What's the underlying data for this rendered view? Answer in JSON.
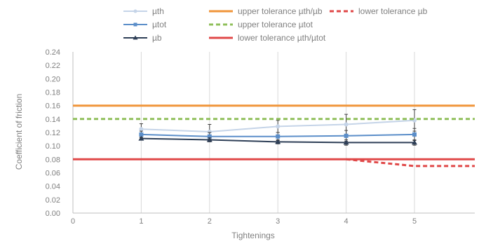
{
  "chart_data": {
    "type": "line",
    "title": "",
    "xlabel": "Tightenings",
    "ylabel": "Coefficient of friction",
    "xlim": [
      0,
      6
    ],
    "ylim": [
      0.0,
      0.24
    ],
    "x_ticks": [
      0,
      1,
      2,
      3,
      4,
      5
    ],
    "x_tick_labels": [
      "0",
      "1",
      "2",
      "3",
      "4",
      "5"
    ],
    "y_ticks": [
      0.0,
      0.02,
      0.04,
      0.06,
      0.08,
      0.1,
      0.12,
      0.14,
      0.16,
      0.18,
      0.2,
      0.22,
      0.24
    ],
    "y_tick_labels": [
      "0.00",
      "0.02",
      "0.04",
      "0.06",
      "0.08",
      "0.10",
      "0.12",
      "0.14",
      "0.16",
      "0.18",
      "0.20",
      "0.22",
      "0.24"
    ],
    "grid": "vertical",
    "legend_position": "top",
    "series": [
      {
        "name": "µth",
        "color": "#c5d4e8",
        "marker": "circle",
        "style": "solid",
        "x": [
          1,
          2,
          3,
          4,
          5
        ],
        "y": [
          0.125,
          0.121,
          0.129,
          0.132,
          0.138
        ],
        "error": [
          0.008,
          0.011,
          0.009,
          0.015,
          0.016
        ]
      },
      {
        "name": "µtot",
        "color": "#5b8ec9",
        "marker": "square",
        "style": "solid",
        "x": [
          1,
          2,
          3,
          4,
          5
        ],
        "y": [
          0.117,
          0.114,
          0.114,
          0.115,
          0.117
        ],
        "error": [
          0.005,
          0.006,
          0.006,
          0.008,
          0.009
        ]
      },
      {
        "name": "µb",
        "color": "#2e3f57",
        "marker": "triangle",
        "style": "solid",
        "x": [
          1,
          2,
          3,
          4,
          5
        ],
        "y": [
          0.111,
          0.109,
          0.106,
          0.105,
          0.105
        ],
        "error": [
          0.002,
          0.003,
          0.003,
          0.004,
          0.004
        ]
      },
      {
        "name": "upper tolerance µth/µb",
        "color": "#f0953a",
        "style": "solid",
        "x": [
          0,
          6
        ],
        "y": [
          0.16,
          0.16
        ]
      },
      {
        "name": "upper tolerance µtot",
        "color": "#8fbf5a",
        "style": "dashed",
        "x": [
          0,
          6
        ],
        "y": [
          0.14,
          0.14
        ]
      },
      {
        "name": "lower tolerance µth/µtot",
        "color": "#e04848",
        "style": "solid",
        "x": [
          0,
          6
        ],
        "y": [
          0.08,
          0.08
        ]
      },
      {
        "name": "lower tolerance µb",
        "color": "#e04848",
        "style": "dashed",
        "x": [
          4,
          5,
          6
        ],
        "y": [
          0.08,
          0.07,
          0.07
        ]
      }
    ]
  }
}
